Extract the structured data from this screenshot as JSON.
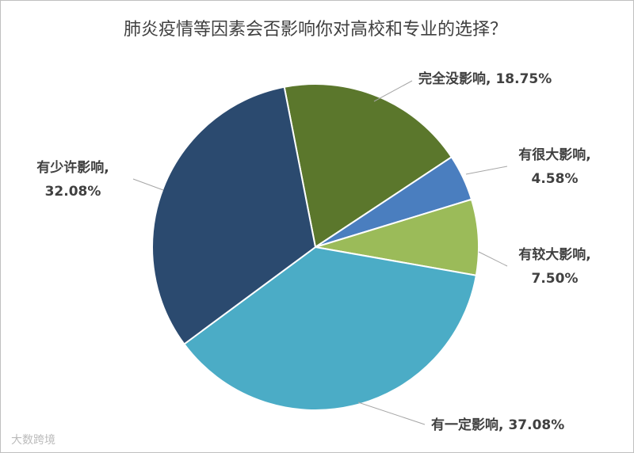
{
  "chart_data": {
    "type": "pie",
    "title": "肺炎疫情等因素会否影响你对高校和专业的选择？",
    "categories": [
      "完全没影响,",
      "有很大影响,",
      "有较大影响,",
      "有一定影响,",
      "有少许影响,"
    ],
    "values": [
      18.75,
      4.58,
      7.5,
      37.08,
      32.08
    ],
    "value_labels": [
      "18.75%",
      "4.58%",
      "7.50%",
      "37.08%",
      "32.08%"
    ],
    "colors": [
      "#5b772c",
      "#4a7ebf",
      "#9bbb59",
      "#4bacc6",
      "#2b4a6f"
    ]
  },
  "watermark": "大数跨境"
}
